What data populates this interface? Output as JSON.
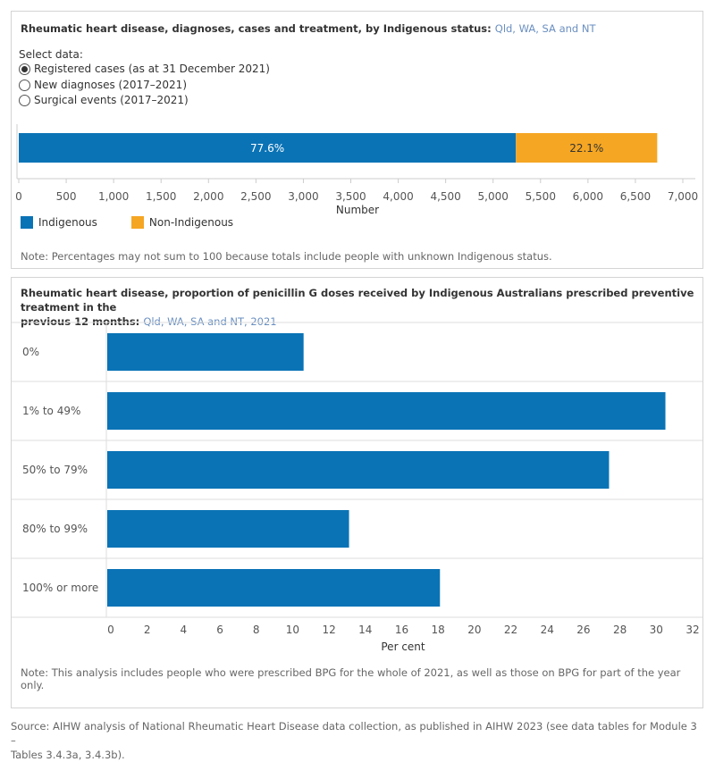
{
  "panel1": {
    "title": "Rheumatic heart disease, diagnoses, cases and treatment, by Indigenous status:",
    "subtitle": "Qld, WA, SA and NT",
    "select_label": "Select data:",
    "options": [
      {
        "label": "Registered cases (as at 31 December 2021)",
        "checked": true
      },
      {
        "label": "New diagnoses (2017–2021)",
        "checked": false
      },
      {
        "label": "Surgical events (2017–2021)",
        "checked": false
      }
    ],
    "legend": [
      {
        "label": "Indigenous",
        "color": "#0a73b6"
      },
      {
        "label": "Non-Indigenous",
        "color": "#f5a623"
      }
    ],
    "note": "Note: Percentages may not sum to 100 because totals include people with unknown Indigenous status."
  },
  "panel2": {
    "title_line1": "Rheumatic heart disease, proportion of penicillin G doses received by Indigenous Australians prescribed preventive treatment in the",
    "title_line2": "previous 12 months:",
    "subtitle": "Qld, WA, SA and NT, 2021",
    "note": "Note: This analysis includes people who were prescribed BPG for the whole of 2021, as well as those on BPG for part of the year only."
  },
  "source_line1": "Source: AIHW analysis of National Rheumatic Heart Disease data collection, as published in AIHW 2023 (see data tables for Module 3 –",
  "source_line2": "Tables 3.4.3a, 3.4.3b).",
  "chart_data": [
    {
      "type": "bar",
      "orientation": "horizontal",
      "stacked": true,
      "xlabel": "Number",
      "xlim": [
        0,
        7000
      ],
      "xticks": [
        0,
        500,
        1000,
        1500,
        2000,
        2500,
        3000,
        3500,
        4000,
        4500,
        5000,
        5500,
        6000,
        6500,
        7000
      ],
      "xtick_labels": [
        "0",
        "500",
        "1,000",
        "1,500",
        "2,000",
        "2,500",
        "3,000",
        "3,500",
        "4,000",
        "4,500",
        "5,000",
        "5,500",
        "6,000",
        "6,500",
        "7,000"
      ],
      "series": [
        {
          "name": "Indigenous",
          "value": 5240,
          "label": "77.6%",
          "color": "#0a73b6"
        },
        {
          "name": "Non-Indigenous",
          "value": 1490,
          "label": "22.1%",
          "color": "#f5a623"
        }
      ]
    },
    {
      "type": "bar",
      "orientation": "horizontal",
      "xlabel": "Per cent",
      "xlim": [
        0,
        32
      ],
      "xticks": [
        0,
        2,
        4,
        6,
        8,
        10,
        12,
        14,
        16,
        18,
        20,
        22,
        24,
        26,
        28,
        30,
        32
      ],
      "categories": [
        "0%",
        "1% to 49%",
        "50% to 79%",
        "80% to 99%",
        "100% or more"
      ],
      "values": [
        10.7,
        30.6,
        27.5,
        13.2,
        18.2
      ],
      "color": "#0a73b6"
    }
  ]
}
